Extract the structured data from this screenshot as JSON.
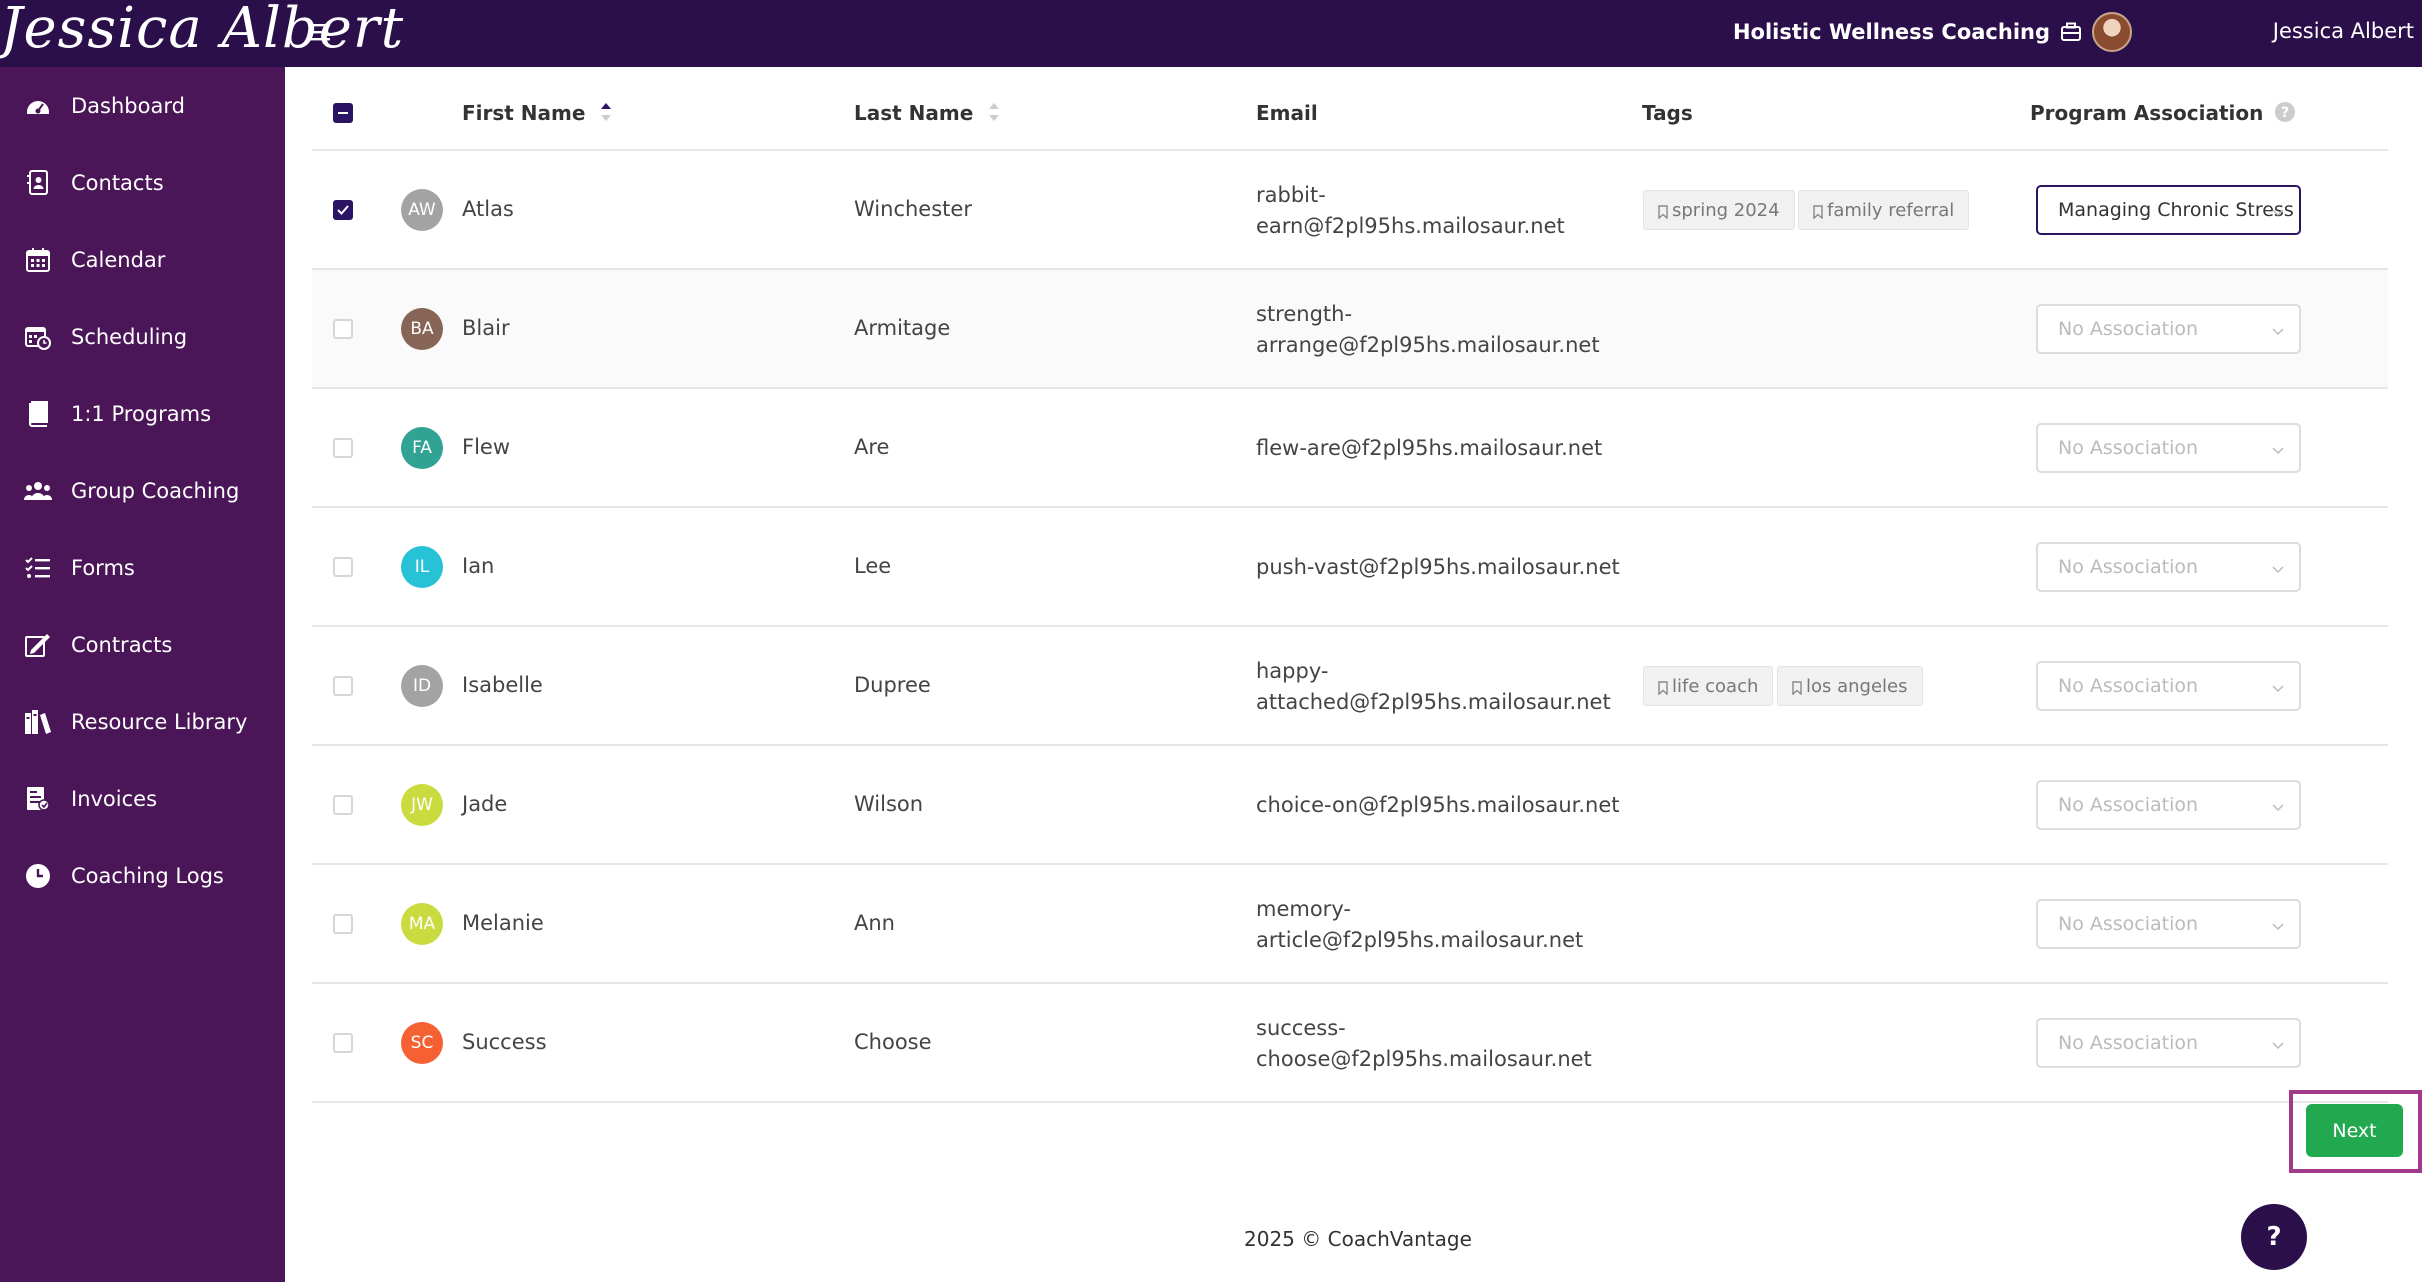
{
  "header": {
    "logo_text": "Jessica Albert",
    "business_name": "Holistic Wellness Coaching",
    "user_name": "Jessica Albert"
  },
  "sidebar": {
    "items": [
      {
        "label": "Dashboard",
        "icon": "dashboard-icon"
      },
      {
        "label": "Contacts",
        "icon": "contacts-icon"
      },
      {
        "label": "Calendar",
        "icon": "calendar-icon"
      },
      {
        "label": "Scheduling",
        "icon": "scheduling-icon"
      },
      {
        "label": "1:1 Programs",
        "icon": "book-icon"
      },
      {
        "label": "Group Coaching",
        "icon": "group-icon"
      },
      {
        "label": "Forms",
        "icon": "forms-icon"
      },
      {
        "label": "Contracts",
        "icon": "contract-icon"
      },
      {
        "label": "Resource Library",
        "icon": "library-icon"
      },
      {
        "label": "Invoices",
        "icon": "invoice-icon"
      },
      {
        "label": "Coaching Logs",
        "icon": "clock-icon"
      }
    ]
  },
  "table": {
    "headers": {
      "first_name": "First Name",
      "last_name": "Last Name",
      "email": "Email",
      "tags": "Tags",
      "program": "Program Association"
    },
    "rows": [
      {
        "initials": "AW",
        "first": "Atlas",
        "last": "Winchester",
        "email_1": "rabbit-",
        "email_2": "earn@f2pl95hs.mailosaur.net",
        "tags": [
          "spring 2024",
          "family referral"
        ],
        "program": "Managing Chronic Stress",
        "checked": true,
        "avatar_color": "#9a9a9a"
      },
      {
        "initials": "BA",
        "first": "Blair",
        "last": "Armitage",
        "email_1": "strength-",
        "email_2": "arrange@f2pl95hs.mailosaur.net",
        "tags": [],
        "program": "No Association",
        "checked": false,
        "avatar_color": "#7a5546"
      },
      {
        "initials": "FA",
        "first": "Flew",
        "last": "Are",
        "email_1": "flew-are@f2pl95hs.mailosaur.net",
        "email_2": "",
        "tags": [],
        "program": "No Association",
        "checked": false,
        "avatar_color": "#1a9a8a"
      },
      {
        "initials": "IL",
        "first": "Ian",
        "last": "Lee",
        "email_1": "push-vast@f2pl95hs.mailosaur.net",
        "email_2": "",
        "tags": [],
        "program": "No Association",
        "checked": false,
        "avatar_color": "#11bcd3"
      },
      {
        "initials": "ID",
        "first": "Isabelle",
        "last": "Dupree",
        "email_1": "happy-",
        "email_2": "attached@f2pl95hs.mailosaur.net",
        "tags": [
          "life coach",
          "los angeles"
        ],
        "program": "No Association",
        "checked": false,
        "avatar_color": "#9a9a9a"
      },
      {
        "initials": "JW",
        "first": "Jade",
        "last": "Wilson",
        "email_1": "choice-on@f2pl95hs.mailosaur.net",
        "email_2": "",
        "tags": [],
        "program": "No Association",
        "checked": false,
        "avatar_color": "#c5d82b"
      },
      {
        "initials": "MA",
        "first": "Melanie",
        "last": "Ann",
        "email_1": "memory-",
        "email_2": "article@f2pl95hs.mailosaur.net",
        "tags": [],
        "program": "No Association",
        "checked": false,
        "avatar_color": "#c5d82b"
      },
      {
        "initials": "SC",
        "first": "Success",
        "last": "Choose",
        "email_1": "success-",
        "email_2": "choose@f2pl95hs.mailosaur.net",
        "tags": [],
        "program": "No Association",
        "checked": false,
        "avatar_color": "#f4511e"
      }
    ]
  },
  "actions": {
    "next_label": "Next"
  },
  "footer": {
    "text": "2025 © CoachVantage"
  },
  "help": {
    "label": "?"
  },
  "colors": {
    "topbar": "#2b0f4a",
    "sidebar": "#4a1657",
    "accent": "#2b1464",
    "next_button": "#22a94f",
    "highlight": "#a13a8a"
  }
}
